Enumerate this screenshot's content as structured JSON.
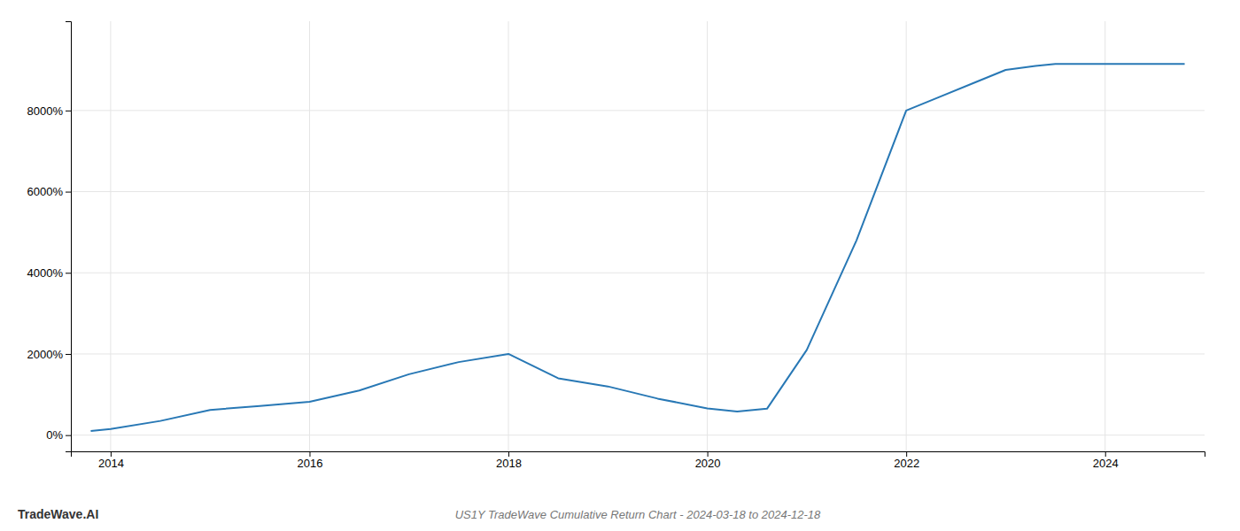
{
  "chart_data": {
    "type": "line",
    "title": "US1Y TradeWave Cumulative Return Chart - 2024-03-18 to 2024-12-18",
    "annotations": [
      "TradeWave.AI"
    ],
    "x": [
      2013.8,
      2014.0,
      2014.5,
      2015.0,
      2015.5,
      2016.0,
      2016.5,
      2017.0,
      2017.5,
      2018.0,
      2018.5,
      2019.0,
      2019.5,
      2020.0,
      2020.3,
      2020.6,
      2021.0,
      2021.5,
      2022.0,
      2022.3,
      2022.7,
      2023.0,
      2023.3,
      2023.5,
      2024.0,
      2024.8
    ],
    "values": [
      100,
      150,
      350,
      620,
      720,
      820,
      1100,
      1500,
      1800,
      2000,
      1400,
      1200,
      900,
      660,
      580,
      650,
      2100,
      4800,
      8000,
      8300,
      8700,
      9000,
      9100,
      9150,
      9150,
      9150
    ],
    "color": "#2878b5",
    "xlim": [
      2013.6,
      2025.0
    ],
    "xticks": [
      2014,
      2016,
      2018,
      2020,
      2022,
      2024
    ],
    "ylim": [
      -400,
      10200
    ],
    "yticks": [
      {
        "value": 0,
        "label": "0%"
      },
      {
        "value": 2000,
        "label": "2000%"
      },
      {
        "value": 4000,
        "label": "4000%"
      },
      {
        "value": 6000,
        "label": "6000%"
      },
      {
        "value": 8000,
        "label": "8000%"
      }
    ],
    "grid": true
  }
}
